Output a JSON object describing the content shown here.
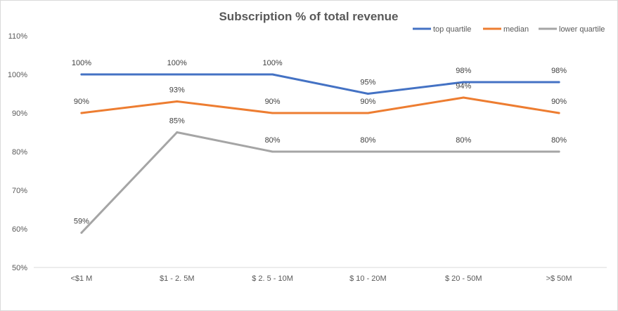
{
  "chart_data": {
    "type": "line",
    "title": "Subscription %  of total revenue",
    "xlabel": "",
    "ylabel": "",
    "categories": [
      "<$1 M",
      "$1 - 2. 5M",
      "$ 2. 5 - 10M",
      "$ 10 - 20M",
      "$ 20 - 50M",
      ">$ 50M"
    ],
    "y_ticks": [
      "50%",
      "60%",
      "70%",
      "80%",
      "90%",
      "100%",
      "110%"
    ],
    "ylim": [
      50,
      110
    ],
    "grid": false,
    "legend_position": "top-right",
    "series": [
      {
        "name": "top quartile",
        "color": "#4472c4",
        "values": [
          100,
          100,
          100,
          95,
          98,
          98
        ],
        "labels": [
          "100%",
          "100%",
          "100%",
          "95%",
          "98%",
          "98%"
        ]
      },
      {
        "name": "median",
        "color": "#ed7d31",
        "values": [
          90,
          93,
          90,
          90,
          94,
          90
        ],
        "labels": [
          "90%",
          "93%",
          "90%",
          "90%",
          "94%",
          "90%"
        ]
      },
      {
        "name": "lower quartile",
        "color": "#a5a5a5",
        "values": [
          59,
          85,
          80,
          80,
          80,
          80
        ],
        "labels": [
          "59%",
          "85%",
          "80%",
          "80%",
          "80%",
          "80%"
        ]
      }
    ]
  }
}
